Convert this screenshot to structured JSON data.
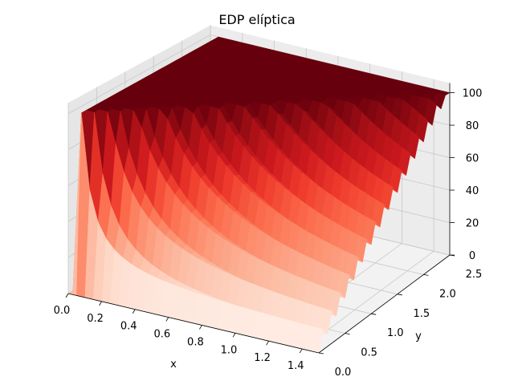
{
  "chart_data": {
    "type": "surface3d",
    "title": "EDP elíptica",
    "xlabel": "x",
    "ylabel": "y",
    "zlabel": "",
    "xlim": [
      0.0,
      1.5
    ],
    "ylim": [
      0.0,
      2.5
    ],
    "zlim": [
      0,
      100
    ],
    "x_ticks": [
      "0.0",
      "0.2",
      "0.4",
      "0.6",
      "0.8",
      "1.0",
      "1.2",
      "1.4"
    ],
    "y_ticks": [
      "0.0",
      "0.5",
      "1.0",
      "1.5",
      "2.0",
      "2.5"
    ],
    "z_ticks": [
      "0",
      "20",
      "40",
      "60",
      "80",
      "100"
    ],
    "colormap": "Reds",
    "grid": true,
    "pane_color": "#f2f2f2",
    "surface": {
      "description_values": {
        "z_at_x0": 0,
        "z_max": 100
      },
      "nx": 31,
      "ny": 31,
      "z_rule": "z = 100 * clamp(y / (2.5 * x/1.5), 0, 1) where x>0, z=0 on x=0 row, jagged triangle along diagonal"
    }
  }
}
